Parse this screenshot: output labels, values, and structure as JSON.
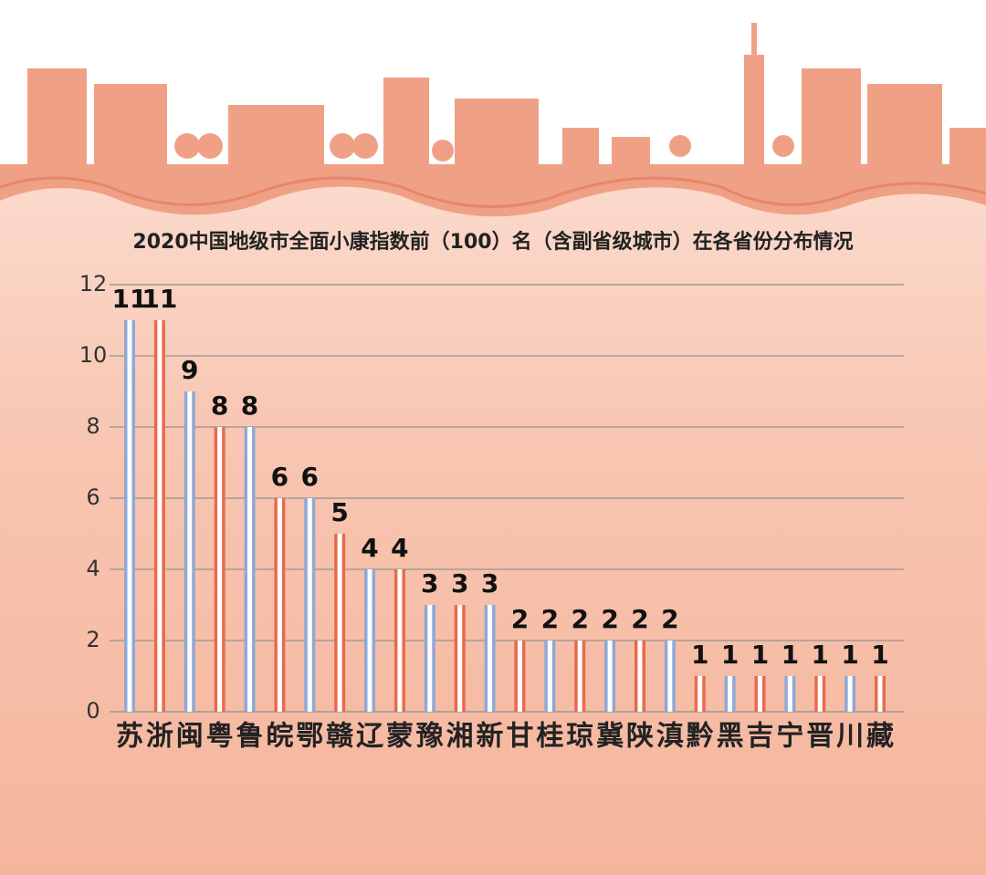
{
  "chart_data": {
    "type": "bar",
    "title": "2020中国地级市全面小康指数前（100）名（含副省级城市）在各省份分布情况",
    "categories": [
      "苏",
      "浙",
      "闽",
      "粤",
      "鲁",
      "皖",
      "鄂",
      "赣",
      "辽",
      "蒙",
      "豫",
      "湘",
      "新",
      "甘",
      "桂",
      "琼",
      "冀",
      "陕",
      "滇",
      "黔",
      "黑",
      "吉",
      "宁",
      "晋",
      "川",
      "藏"
    ],
    "values": [
      11,
      11,
      9,
      8,
      8,
      6,
      6,
      5,
      4,
      4,
      3,
      3,
      3,
      2,
      2,
      2,
      2,
      2,
      2,
      1,
      1,
      1,
      1,
      1,
      1,
      1
    ],
    "colors": [
      "#8fa8d4",
      "#e86a4e",
      "#8fa8d4",
      "#e86a4e",
      "#8fa8d4",
      "#e86a4e",
      "#8fa8d4",
      "#e86a4e",
      "#8fa8d4",
      "#e86a4e",
      "#8fa8d4",
      "#e86a4e",
      "#8fa8d4",
      "#e86a4e",
      "#8fa8d4",
      "#e86a4e",
      "#8fa8d4",
      "#e86a4e",
      "#8fa8d4",
      "#e86a4e",
      "#8fa8d4",
      "#e86a4e",
      "#8fa8d4",
      "#e86a4e",
      "#8fa8d4",
      "#e86a4e"
    ],
    "ylim": [
      0,
      12
    ],
    "yticks": [
      0,
      2,
      4,
      6,
      8,
      10,
      12
    ],
    "grid": true
  }
}
